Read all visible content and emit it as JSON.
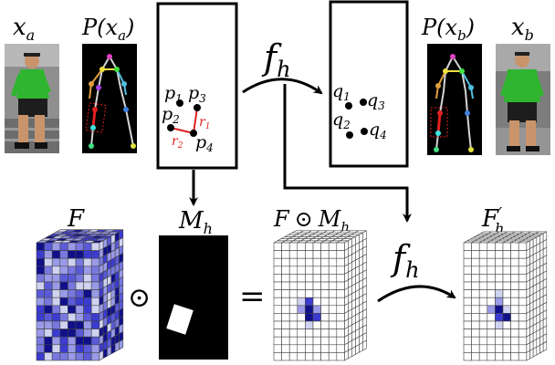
{
  "labels": {
    "xa": {
      "base": "x",
      "sub": "a"
    },
    "xb": {
      "base": "x",
      "sub": "b"
    },
    "pxa": {
      "pre": "P(",
      "base": "x",
      "sub": "a",
      "post": ")"
    },
    "pxb": {
      "pre": "P(",
      "base": "x",
      "sub": "b",
      "post": ")"
    },
    "fh_top": {
      "base": "f",
      "sub": "h"
    },
    "fh_bottom": {
      "base": "f",
      "sub": "h"
    },
    "F": "F",
    "Mh": {
      "base": "M",
      "sub": "h"
    },
    "F_odot_Mh": {
      "pre": "F",
      "odot": "⊙",
      "base": "M",
      "sub": "h"
    },
    "Fh_prime": {
      "base": "F",
      "prime": "′",
      "sub": "h"
    },
    "odot_symbol": "⊙",
    "equals_symbol": "="
  },
  "points_left": [
    {
      "base": "p",
      "sub": "1"
    },
    {
      "base": "p",
      "sub": "3"
    },
    {
      "base": "p",
      "sub": "2"
    },
    {
      "base": "p",
      "sub": "4"
    }
  ],
  "points_right": [
    {
      "base": "q",
      "sub": "1"
    },
    {
      "base": "q",
      "sub": "3"
    },
    {
      "base": "q",
      "sub": "2"
    },
    {
      "base": "q",
      "sub": "4"
    }
  ],
  "radii": [
    {
      "base": "r",
      "sub": "1"
    },
    {
      "base": "r",
      "sub": "2"
    }
  ],
  "colors": {
    "accent_red": "#e02020",
    "shirt_green": "#2fb52f",
    "grid_dark": "#10108a",
    "grid_mid": "#3b3bd0",
    "grid_light": "#9a9ae8",
    "grid_pale": "#cfd3f0"
  }
}
